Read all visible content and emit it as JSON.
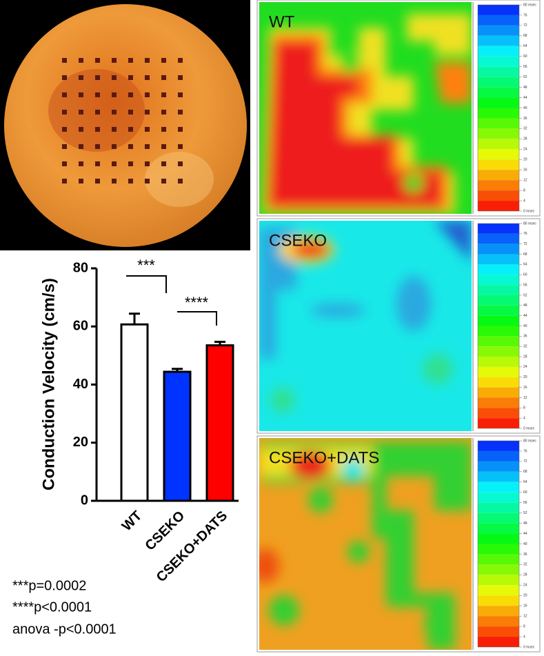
{
  "chart_data": {
    "type": "bar",
    "y_label": "Conduction Velocity (cm/s)",
    "categories": [
      "WT",
      "CSEKO",
      "CSEKO+DATS"
    ],
    "values": [
      60.7,
      44.4,
      53.5
    ],
    "errors": [
      3.7,
      1.0,
      1.2
    ],
    "colors": [
      "#ffffff",
      "#0033ff",
      "#ff0000"
    ],
    "ylim": [
      0,
      80
    ],
    "yticks": [
      0,
      20,
      40,
      60,
      80
    ],
    "annotations": [
      "***",
      "****"
    ],
    "notes": [
      "***p=0.0002",
      "****p<0.0001",
      "anova -p<0.0001"
    ]
  },
  "heatmaps": {
    "panels": [
      "WT",
      "CSEKO",
      "CSEKO+DATS"
    ],
    "colorbar_lim": [
      0,
      80
    ],
    "colorbar_ticks": [
      {
        "value": 80,
        "label": "80 msec"
      },
      76,
      72,
      68,
      64,
      60,
      56,
      52,
      48,
      44,
      40,
      36,
      32,
      28,
      24,
      20,
      16,
      12,
      8,
      4,
      {
        "value": 0,
        "label": "0 msec"
      }
    ]
  }
}
